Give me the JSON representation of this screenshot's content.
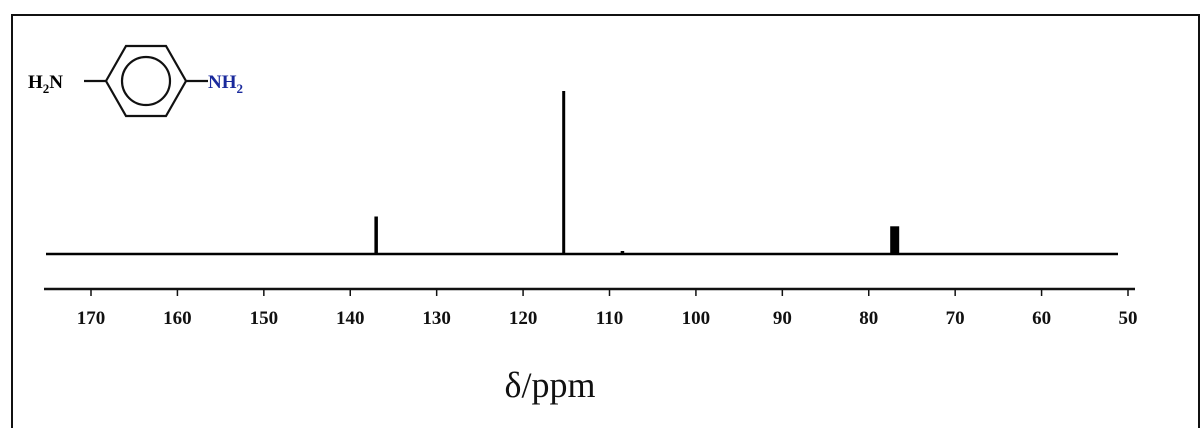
{
  "chart_data": {
    "type": "line",
    "title": "",
    "xlabel": "δ/ppm",
    "ylabel": "",
    "xlim": [
      175,
      50
    ],
    "x_axis_reversed": true,
    "grid": false,
    "tick_values": [
      170,
      160,
      150,
      140,
      130,
      120,
      110,
      100,
      90,
      80,
      70,
      60,
      50
    ],
    "tick_labels": [
      "170",
      "160",
      "150",
      "140",
      "130",
      "120",
      "110",
      "100",
      "90",
      "80",
      "70",
      "60",
      "50"
    ],
    "series": [
      {
        "peaks": [
          {
            "x": 137.0,
            "intensity": 0.23
          },
          {
            "x": 115.3,
            "intensity": 1.0
          },
          {
            "x": 108.5,
            "intensity": 0.01
          },
          {
            "x": 77.0,
            "intensity": 0.17
          }
        ]
      }
    ],
    "spectrum_color": "#000000"
  },
  "molecule": {
    "left_group": {
      "symbol": "H",
      "subscript": "2",
      "rest": "N"
    },
    "right_group": {
      "symbol": "NH",
      "subscript": "2"
    },
    "right_group_color": "#1a2a9c",
    "ring": "benzene"
  }
}
